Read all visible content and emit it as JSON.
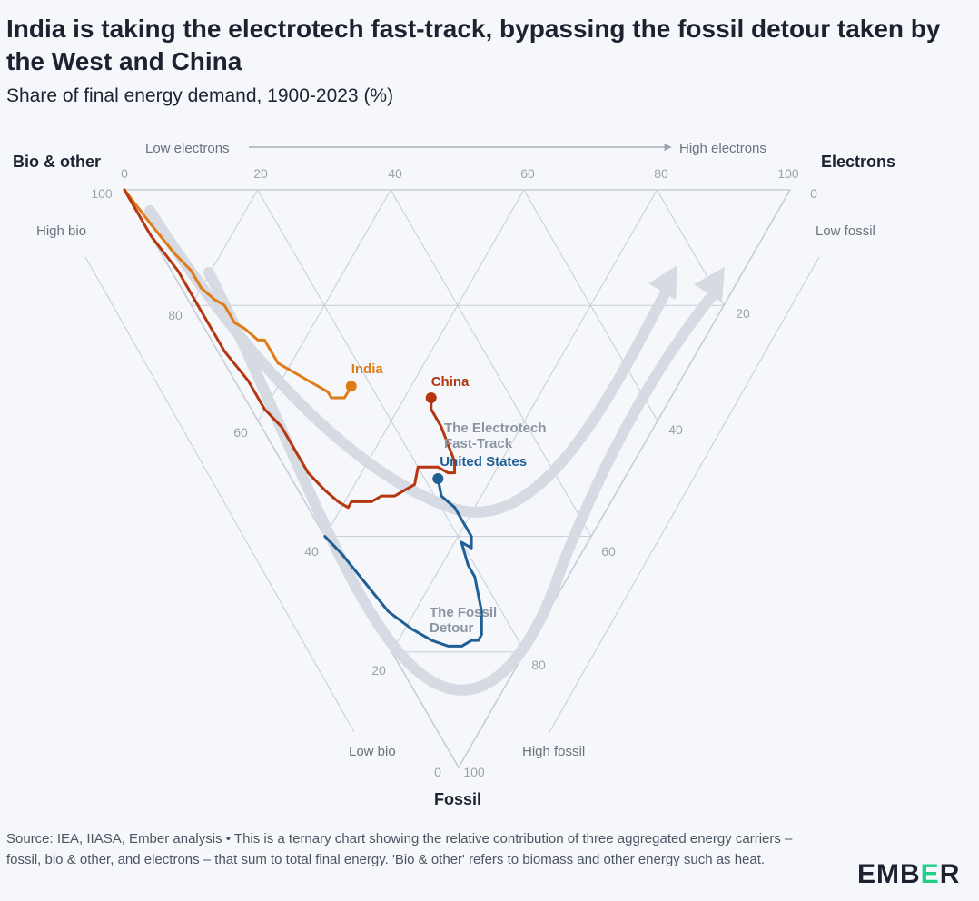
{
  "title": "India is taking the electrotech fast-track, bypassing the fossil detour taken by the West and China",
  "subtitle": "Share of final energy demand, 1900-2023 (%)",
  "footer": "Source: IEA, IIASA, Ember analysis • This is a ternary chart showing the relative contribution of three aggregated energy carriers – fossil, bio & other, and electrons – that sum to total final energy. 'Bio & other' refers to biomass and other energy such as heat.",
  "logo": {
    "text_before": "EMB",
    "text_accent": "E",
    "text_after": "R",
    "accent_color": "#1ed08a"
  },
  "chart_data": {
    "type": "ternary",
    "components": [
      "Bio & other",
      "Electrons",
      "Fossil"
    ],
    "corner_labels": {
      "bio": "Bio & other",
      "electrons": "Electrons",
      "fossil": "Fossil"
    },
    "axis_notes": {
      "low_electrons": "Low electrons",
      "high_electrons": "High electrons",
      "high_bio": "High bio",
      "low_bio": "Low bio",
      "low_fossil": "Low fossil",
      "high_fossil": "High fossil"
    },
    "ticks": {
      "electrons": [
        "0",
        "20",
        "40",
        "60",
        "80",
        "100"
      ],
      "bio": [
        "100",
        "80",
        "60",
        "40",
        "20",
        "0"
      ],
      "fossil": [
        "0",
        "20",
        "40",
        "60",
        "80",
        "100"
      ]
    },
    "path_annotations": {
      "fasttrack_line1": "The Electrotech",
      "fasttrack_line2": "Fast-Track",
      "detour_line1": "The Fossil",
      "detour_line2": "Detour"
    },
    "colors": {
      "India": "#e07b1a",
      "China": "#b5360f",
      "United States": "#1f5f94",
      "grid": "#c7cdd6",
      "guide": "#d6dae3"
    },
    "series": [
      {
        "name": "India",
        "label": "India",
        "points": [
          [
            100,
            0
          ],
          [
            93,
            1
          ],
          [
            87,
            2
          ],
          [
            83,
            3
          ],
          [
            80,
            3
          ],
          [
            77,
            4
          ],
          [
            75,
            5
          ],
          [
            72,
            5
          ],
          [
            70,
            6
          ],
          [
            67,
            7
          ],
          [
            66,
            8
          ],
          [
            64,
            8
          ],
          [
            62,
            8
          ],
          [
            60,
            9
          ],
          [
            58,
            10
          ],
          [
            56,
            11
          ],
          [
            54,
            12
          ],
          [
            52,
            13
          ],
          [
            51,
            13
          ],
          [
            50,
            14
          ],
          [
            49,
            15
          ],
          [
            49,
            16
          ],
          [
            49,
            17
          ]
        ]
      },
      {
        "name": "China",
        "label": "China",
        "points": [
          [
            100,
            0
          ],
          [
            92,
            0
          ],
          [
            85,
            1
          ],
          [
            78,
            1
          ],
          [
            71,
            1
          ],
          [
            65,
            2
          ],
          [
            60,
            2
          ],
          [
            56,
            3
          ],
          [
            52,
            3
          ],
          [
            48,
            3
          ],
          [
            44,
            4
          ],
          [
            41,
            5
          ],
          [
            39,
            6
          ],
          [
            39,
            7
          ],
          [
            38,
            8
          ],
          [
            37,
            9
          ],
          [
            36,
            10
          ],
          [
            35,
            12
          ],
          [
            33,
            14
          ],
          [
            32,
            16
          ],
          [
            31,
            18
          ],
          [
            32,
            20
          ],
          [
            31,
            21
          ],
          [
            30,
            22
          ],
          [
            29,
            23
          ],
          [
            27,
            24
          ],
          [
            26,
            25
          ],
          [
            27,
            26
          ],
          [
            32,
            27
          ],
          [
            35,
            27
          ],
          [
            36,
            28
          ]
        ]
      },
      {
        "name": "United States",
        "label": "United States",
        "points": [
          [
            40,
            0
          ],
          [
            36,
            1
          ],
          [
            30,
            2
          ],
          [
            24,
            3
          ],
          [
            19,
            5
          ],
          [
            15,
            7
          ],
          [
            12,
            9
          ],
          [
            10,
            11
          ],
          [
            9,
            13
          ],
          [
            8,
            14
          ],
          [
            8,
            15
          ],
          [
            9,
            16
          ],
          [
            10,
            17
          ],
          [
            12,
            18
          ],
          [
            14,
            19
          ],
          [
            16,
            19
          ],
          [
            19,
            20
          ],
          [
            17,
            21
          ],
          [
            18,
            22
          ],
          [
            20,
            22
          ],
          [
            23,
            22
          ],
          [
            26,
            21
          ],
          [
            28,
            22
          ]
        ]
      }
    ]
  }
}
